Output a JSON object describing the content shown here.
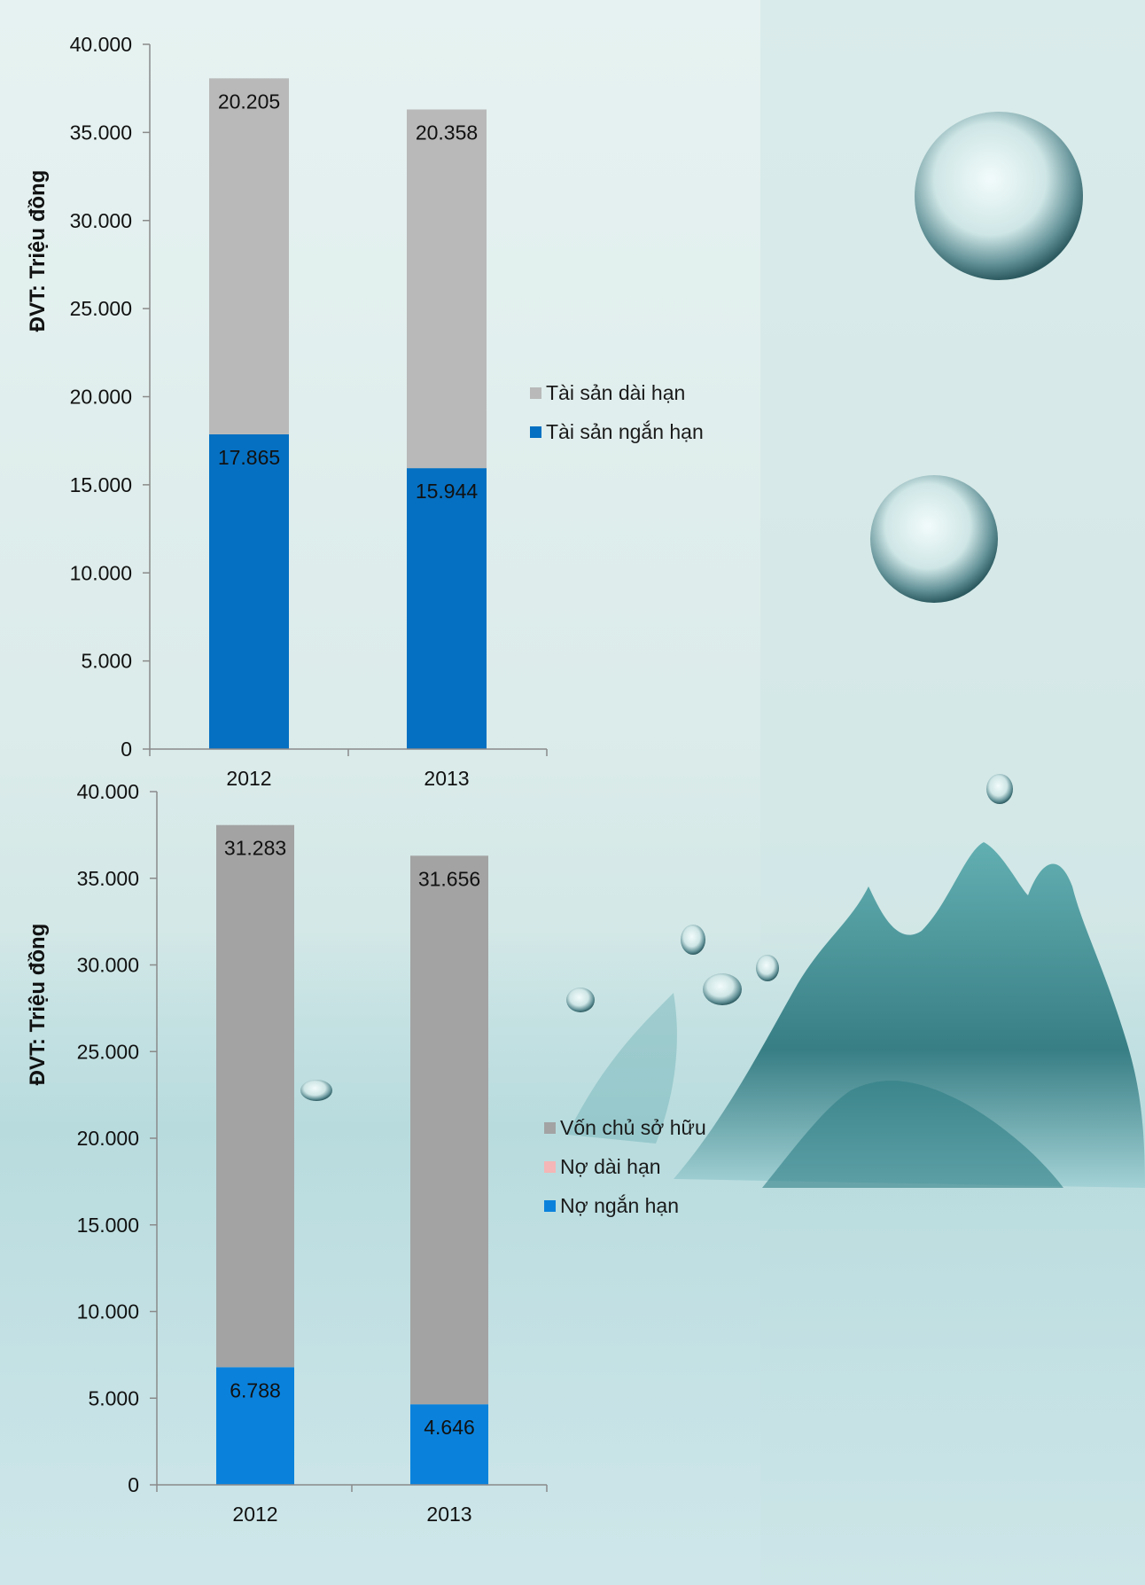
{
  "colors": {
    "long_term_assets": "#b9b9b9",
    "short_term_assets": "#0570c2",
    "equity": "#a3a3a3",
    "long_term_debt": "#f4b6b6",
    "short_term_debt": "#0a82dc"
  },
  "chart_data": [
    {
      "type": "bar",
      "stacked": true,
      "ylabel": "ĐVT: Triệu đồng",
      "ylim": [
        0,
        40000
      ],
      "yticks": [
        "0",
        "5.000",
        "10.000",
        "15.000",
        "20.000",
        "25.000",
        "30.000",
        "35.000",
        "40.000"
      ],
      "categories": [
        "2012",
        "2013"
      ],
      "legend_position": "right",
      "series": [
        {
          "name": "Tài sản ngắn hạn",
          "values": [
            17865,
            15944
          ],
          "labels": [
            "17.865",
            "15.944"
          ],
          "color": "#0570c2"
        },
        {
          "name": "Tài sản dài hạn",
          "values": [
            20205,
            20358
          ],
          "labels": [
            "20.205",
            "20.358"
          ],
          "color": "#b9b9b9"
        }
      ],
      "legend_order": [
        "Tài sản dài hạn",
        "Tài sản ngắn hạn"
      ]
    },
    {
      "type": "bar",
      "stacked": true,
      "ylabel": "ĐVT: Triệu đồng",
      "ylim": [
        0,
        40000
      ],
      "yticks": [
        "0",
        "5.000",
        "10.000",
        "15.000",
        "20.000",
        "25.000",
        "30.000",
        "35.000",
        "40.000"
      ],
      "categories": [
        "2012",
        "2013"
      ],
      "legend_position": "right",
      "series": [
        {
          "name": "Nợ ngắn hạn",
          "values": [
            6788,
            4646
          ],
          "labels": [
            "6.788",
            "4.646"
          ],
          "color": "#0a82dc"
        },
        {
          "name": "Nợ dài hạn",
          "values": [
            0,
            0
          ],
          "labels": [
            "",
            ""
          ],
          "color": "#f4b6b6"
        },
        {
          "name": "Vốn chủ sở hữu",
          "values": [
            31283,
            31656
          ],
          "labels": [
            "31.283",
            "31.656"
          ],
          "color": "#a3a3a3"
        }
      ],
      "legend_order": [
        "Vốn chủ sở hữu",
        "Nợ dài hạn",
        "Nợ ngắn hạn"
      ]
    }
  ]
}
